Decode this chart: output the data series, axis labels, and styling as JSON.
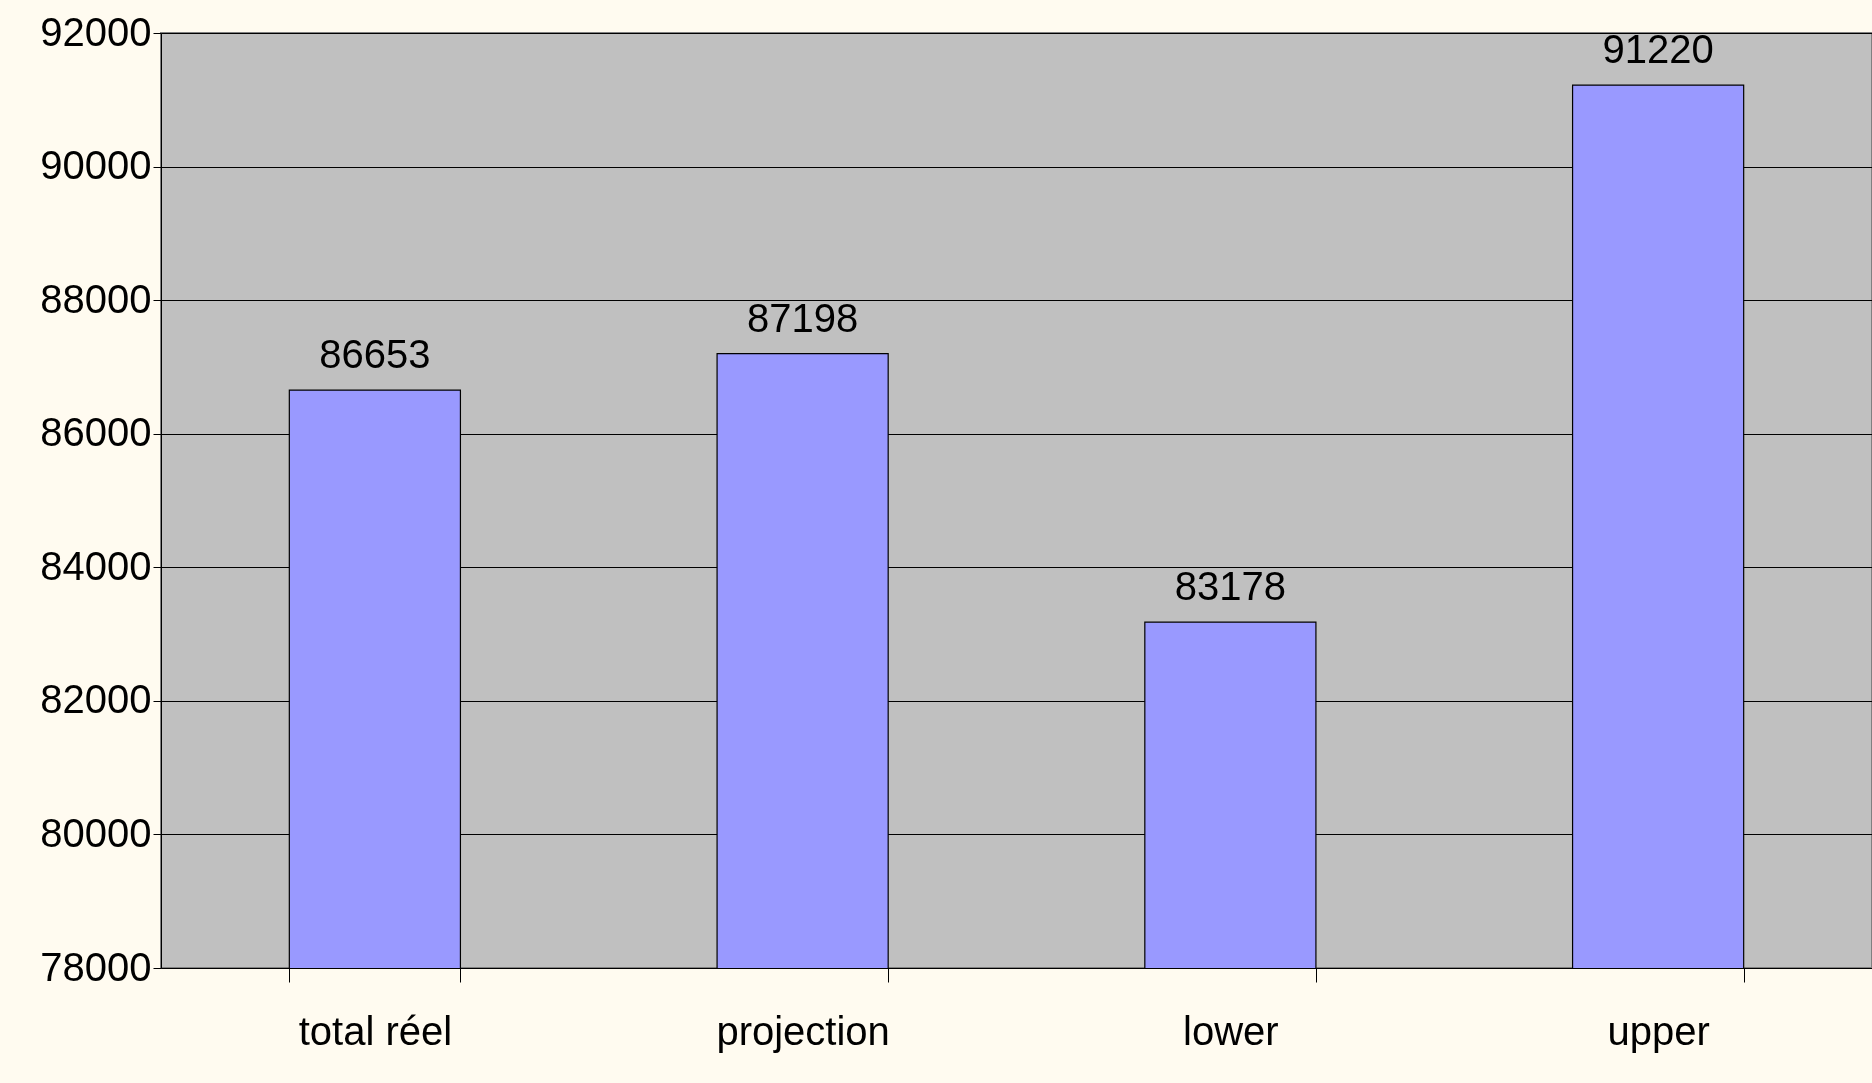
{
  "chart_data": {
    "type": "bar",
    "categories": [
      "total réel",
      "projection",
      "lower",
      "upper"
    ],
    "values": [
      86653,
      87198,
      83178,
      91220
    ],
    "color": "#9999ff",
    "ylim": [
      78000,
      92000
    ],
    "yticks": [
      78000,
      80000,
      82000,
      84000,
      86000,
      88000,
      90000,
      92000
    ],
    "grid": "y",
    "data_labels": true
  }
}
